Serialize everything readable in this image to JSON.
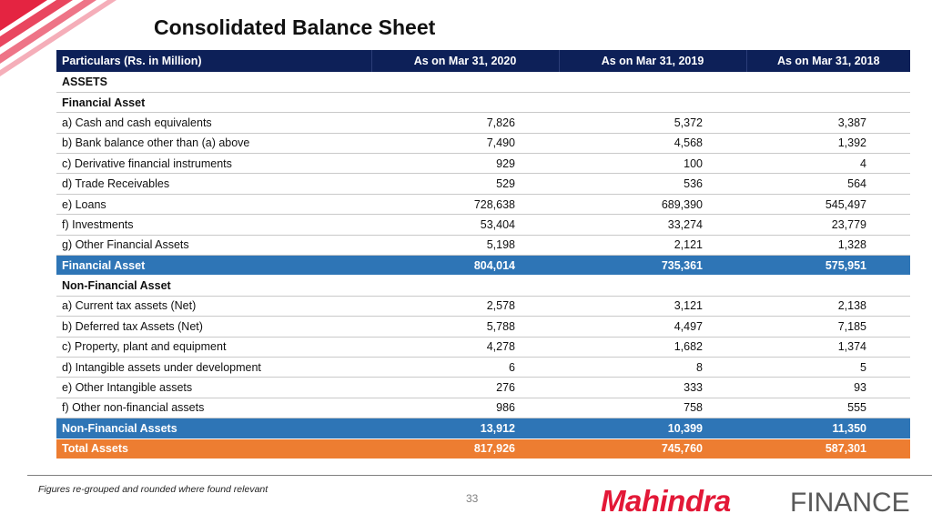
{
  "title": "Consolidated Balance Sheet",
  "table": {
    "headers": [
      "Particulars (Rs. in Million)",
      "As on Mar 31, 2020",
      "As on Mar 31, 2019",
      "As on Mar 31, 2018"
    ],
    "rows": [
      {
        "kind": "section",
        "cells": [
          "ASSETS",
          "",
          "",
          ""
        ]
      },
      {
        "kind": "section",
        "cells": [
          "Financial Asset",
          "",
          "",
          ""
        ]
      },
      {
        "kind": "item",
        "cells": [
          "a) Cash and cash equivalents",
          "7,826",
          "5,372",
          "3,387"
        ]
      },
      {
        "kind": "item",
        "cells": [
          "b) Bank balance other than (a) above",
          "7,490",
          "4,568",
          "1,392"
        ]
      },
      {
        "kind": "item",
        "cells": [
          "c) Derivative financial instruments",
          "929",
          "100",
          "4"
        ]
      },
      {
        "kind": "item",
        "cells": [
          "d) Trade Receivables",
          "529",
          "536",
          "564"
        ]
      },
      {
        "kind": "item",
        "cells": [
          "e) Loans",
          "728,638",
          "689,390",
          "545,497"
        ]
      },
      {
        "kind": "item",
        "cells": [
          "f)  Investments",
          "53,404",
          "33,274",
          "23,779"
        ]
      },
      {
        "kind": "item",
        "cells": [
          "g)  Other Financial Assets",
          "5,198",
          "2,121",
          "1,328"
        ]
      },
      {
        "kind": "subtotal",
        "cells": [
          "Financial Asset",
          "804,014",
          "735,361",
          "575,951"
        ]
      },
      {
        "kind": "section",
        "cells": [
          "Non-Financial Asset",
          "",
          "",
          ""
        ]
      },
      {
        "kind": "item",
        "cells": [
          "a) Current tax assets (Net)",
          "2,578",
          "3,121",
          "2,138"
        ]
      },
      {
        "kind": "item",
        "cells": [
          "b) Deferred tax Assets (Net)",
          "5,788",
          "4,497",
          "7,185"
        ]
      },
      {
        "kind": "item",
        "cells": [
          "c) Property, plant and equipment",
          "4,278",
          "1,682",
          "1,374"
        ]
      },
      {
        "kind": "item",
        "cells": [
          "d) Intangible assets under development",
          "6",
          "8",
          "5"
        ]
      },
      {
        "kind": "item",
        "cells": [
          "e) Other Intangible assets",
          "276",
          "333",
          "93"
        ]
      },
      {
        "kind": "item",
        "cells": [
          "f) Other non-financial assets",
          "986",
          "758",
          "555"
        ]
      },
      {
        "kind": "subtotal",
        "cells": [
          "Non-Financial Assets",
          "13,912",
          "10,399",
          "11,350"
        ]
      },
      {
        "kind": "total",
        "cells": [
          "Total Assets",
          "817,926",
          "745,760",
          "587,301"
        ]
      }
    ]
  },
  "footnote": "Figures re-grouped and rounded where found relevant",
  "page_number": "33",
  "logo": {
    "brand": "Mahindra",
    "suffix": "FINANCE",
    "brand_color": "#e31837",
    "suffix_color": "#595959"
  },
  "colors": {
    "header_bg": "#0d2058",
    "subtotal_bg": "#2e75b6",
    "total_bg": "#ed7d31",
    "corner_accent": "#e31837"
  }
}
